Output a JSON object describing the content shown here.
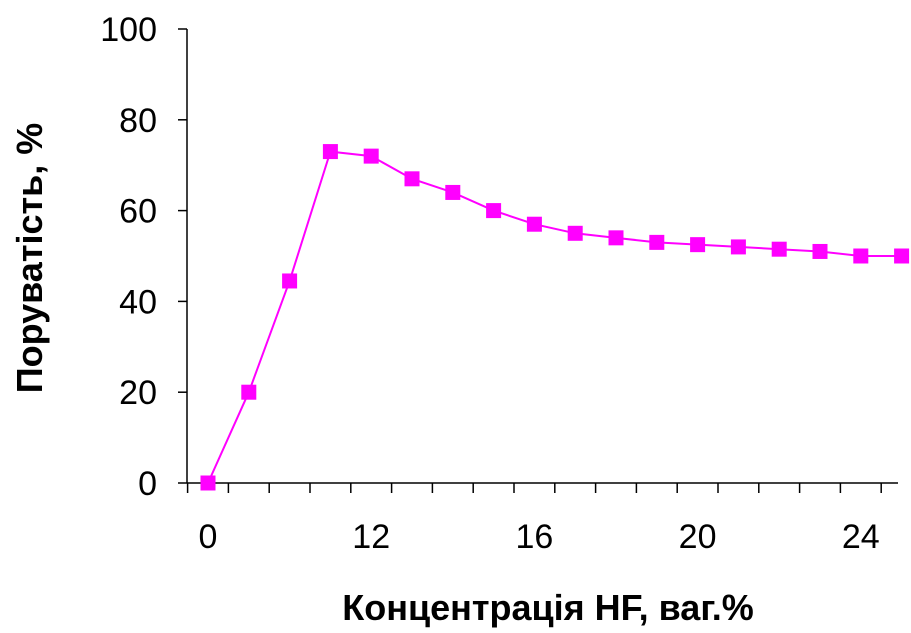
{
  "chart_data": {
    "type": "line",
    "title": "",
    "xlabel": "Концентрація HF, ваг.%",
    "ylabel": "Поруватість, %",
    "xlim": [
      0,
      25
    ],
    "ylim": [
      0,
      100
    ],
    "x_tick_labels": [
      "0",
      "12",
      "16",
      "20",
      "24"
    ],
    "y_ticks": [
      0,
      20,
      40,
      60,
      80,
      100
    ],
    "y_tick_labels": [
      "0",
      "20",
      "40",
      "60",
      "80",
      "100"
    ],
    "grid": false,
    "legend": "none",
    "series": [
      {
        "color": "#ff00ff",
        "marker": "square",
        "points": [
          {
            "x": 0,
            "y": 0
          },
          {
            "x": 1,
            "y": 20
          },
          {
            "x": 2,
            "y": 44.5
          },
          {
            "x": 3,
            "y": 73
          },
          {
            "x": 4,
            "y": 72
          },
          {
            "x": 5,
            "y": 67
          },
          {
            "x": 6,
            "y": 64
          },
          {
            "x": 7,
            "y": 60
          },
          {
            "x": 8,
            "y": 57
          },
          {
            "x": 9,
            "y": 55
          },
          {
            "x": 10,
            "y": 54
          },
          {
            "x": 11,
            "y": 53
          },
          {
            "x": 12,
            "y": 52.5
          },
          {
            "x": 13,
            "y": 52
          },
          {
            "x": 14,
            "y": 51.5
          },
          {
            "x": 15,
            "y": 51
          },
          {
            "x": 16,
            "y": 50
          },
          {
            "x": 17,
            "y": 50
          }
        ]
      }
    ]
  }
}
